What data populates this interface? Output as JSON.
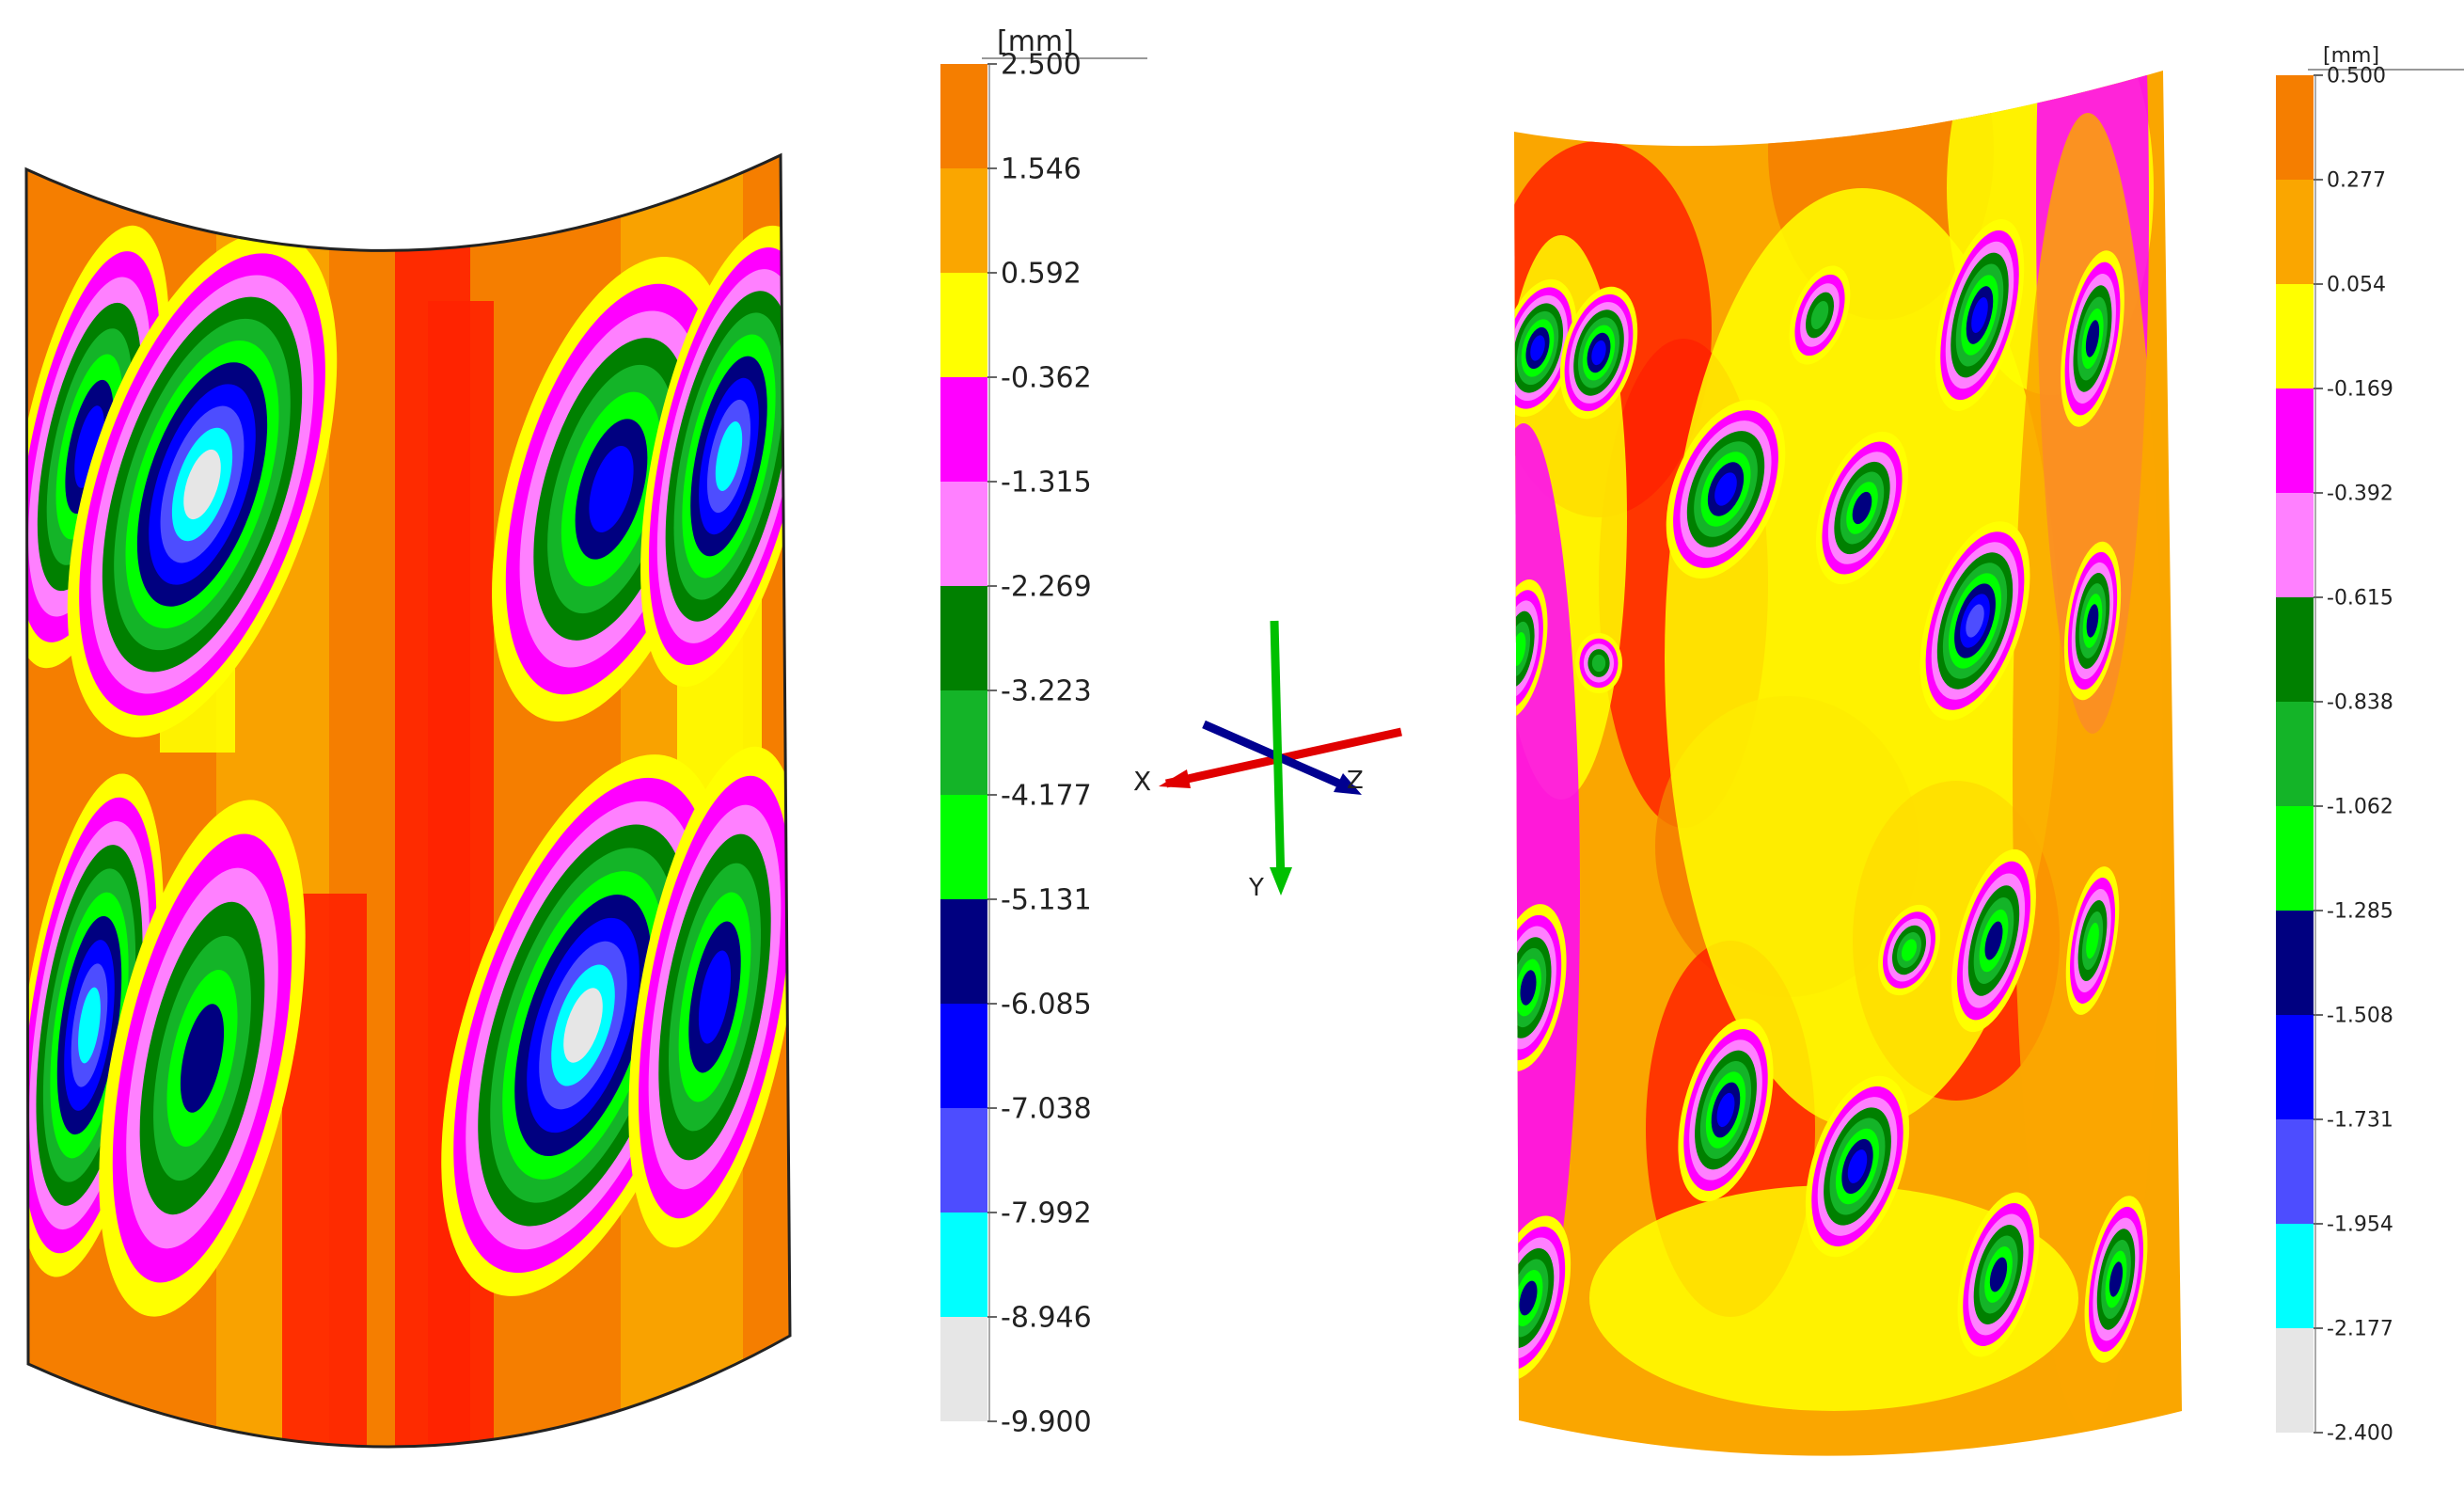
{
  "colors": {
    "orange_dark": "#f57e00",
    "orange": "#faa600",
    "yellow": "#ffff00",
    "magenta": "#ff00ff",
    "pink": "#ff80ff",
    "green_dark": "#008000",
    "green_mid": "#14b428",
    "green_light": "#00ff00",
    "navy": "#000080",
    "blue": "#0000ff",
    "blue_light": "#4d4dff",
    "cyan": "#00ffff",
    "gray": "#e6e6e6",
    "red": "#ff2200",
    "axis_x": "#e00000",
    "axis_y": "#00c000",
    "axis_z": "#000090"
  },
  "left_scale": {
    "unit": "[mm]",
    "values": [
      "2.500",
      "1.546",
      "0.592",
      "-0.362",
      "-1.315",
      "-2.269",
      "-3.223",
      "-4.177",
      "-5.131",
      "-6.085",
      "-7.038",
      "-7.992",
      "-8.946",
      "-9.900"
    ],
    "bands": [
      "orange_dark",
      "orange",
      "yellow",
      "magenta",
      "pink",
      "green_dark",
      "green_mid",
      "green_light",
      "navy",
      "blue",
      "blue_light",
      "cyan",
      "gray"
    ]
  },
  "right_scale": {
    "unit": "[mm]",
    "values": [
      "0.500",
      "0.277",
      "0.054",
      "-0.169",
      "-0.392",
      "-0.615",
      "-0.838",
      "-1.062",
      "-1.285",
      "-1.508",
      "-1.731",
      "-1.954",
      "-2.177",
      "-2.400"
    ],
    "bands": [
      "orange_dark",
      "orange",
      "yellow",
      "magenta",
      "pink",
      "green_dark",
      "green_mid",
      "green_light",
      "navy",
      "blue",
      "blue_light",
      "cyan",
      "gray"
    ]
  },
  "axes": {
    "x_label": "X",
    "y_label": "Y",
    "z_label": "Z"
  }
}
